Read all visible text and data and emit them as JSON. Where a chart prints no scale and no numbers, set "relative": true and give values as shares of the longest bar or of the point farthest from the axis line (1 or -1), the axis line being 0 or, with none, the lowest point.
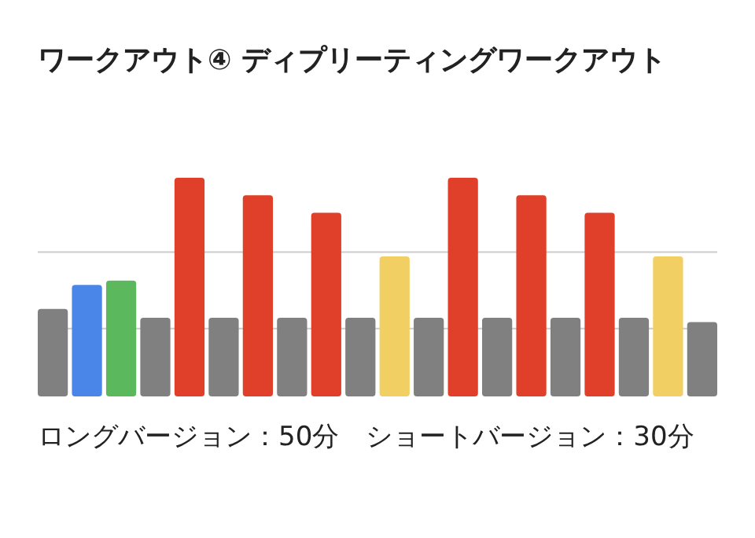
{
  "chart_data": {
    "type": "bar",
    "title": "ワークアウト④ ディプリーティングワークアウト",
    "relative": true,
    "categories": [
      null,
      null,
      null,
      null,
      null,
      null,
      null,
      null,
      null,
      null,
      null,
      null,
      null,
      null,
      null,
      null,
      null,
      null,
      null,
      null
    ],
    "values": [
      0.4,
      0.51,
      0.53,
      0.36,
      1,
      0.36,
      0.92,
      0.36,
      0.84,
      0.36,
      0.64,
      0.36,
      1,
      0.36,
      0.92,
      0.36,
      0.84,
      0.36,
      0.64,
      0.34
    ],
    "colors": [
      "#808080",
      "#4a86e8",
      "#5cb85c",
      "#808080",
      "#e0402a",
      "#808080",
      "#e0402a",
      "#808080",
      "#e0402a",
      "#808080",
      "#f2cf63",
      "#808080",
      "#e0402a",
      "#808080",
      "#e0402a",
      "#808080",
      "#e0402a",
      "#808080",
      "#f2cf63",
      "#808080"
    ],
    "ref_lines": [
      {
        "axis": "y",
        "value": 0.66,
        "color": "#cccccc"
      },
      {
        "axis": "y",
        "value": 0.31,
        "color": "#cccccc"
      }
    ],
    "annotations": [
      "ロングバージョン：50分　ショートバージョン：30分"
    ]
  }
}
